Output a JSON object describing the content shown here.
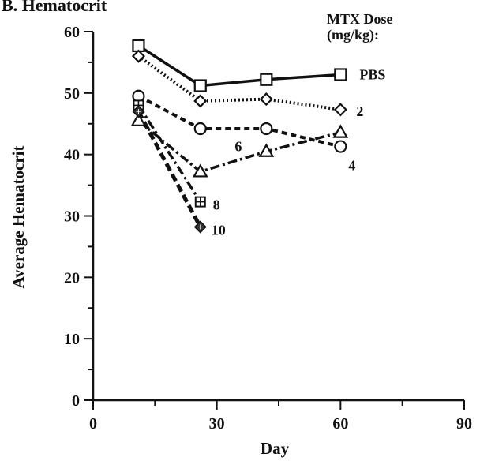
{
  "chart_data": {
    "type": "line",
    "title": "B. Hematocrit",
    "xlabel": "Day",
    "ylabel": "Average Hematocrit",
    "xlim": [
      0,
      90
    ],
    "ylim": [
      0,
      60
    ],
    "xticks": [
      0,
      30,
      60,
      90
    ],
    "yticks": [
      0,
      10,
      20,
      30,
      40,
      50,
      60
    ],
    "grid": false,
    "legend_title": [
      "MTX Dose",
      "(mg/kg):"
    ],
    "series": [
      {
        "name": "PBS",
        "marker": "square",
        "line": "solid",
        "x": [
          11,
          26,
          42,
          60
        ],
        "y": [
          57.7,
          51.2,
          52.2,
          53.0
        ]
      },
      {
        "name": "2",
        "marker": "diamond",
        "line": "dotted",
        "x": [
          11,
          26,
          42,
          60
        ],
        "y": [
          56.0,
          48.7,
          49.0,
          47.3
        ]
      },
      {
        "name": "4",
        "marker": "circle",
        "line": "dashed",
        "x": [
          11,
          26,
          42,
          60
        ],
        "y": [
          49.5,
          44.2,
          44.2,
          41.3
        ]
      },
      {
        "name": "6",
        "marker": "triangle",
        "line": "dashdot",
        "x": [
          11,
          26,
          42,
          60
        ],
        "y": [
          45.5,
          37.2,
          40.5,
          43.6
        ]
      },
      {
        "name": "8",
        "marker": "crossed-square",
        "line": "dashdot",
        "x": [
          11,
          26
        ],
        "y": [
          48.0,
          32.3
        ]
      },
      {
        "name": "10",
        "marker": "filled-diamond",
        "line": "dashed-bold",
        "x": [
          11,
          26
        ],
        "y": [
          47.0,
          28.2
        ]
      }
    ]
  }
}
